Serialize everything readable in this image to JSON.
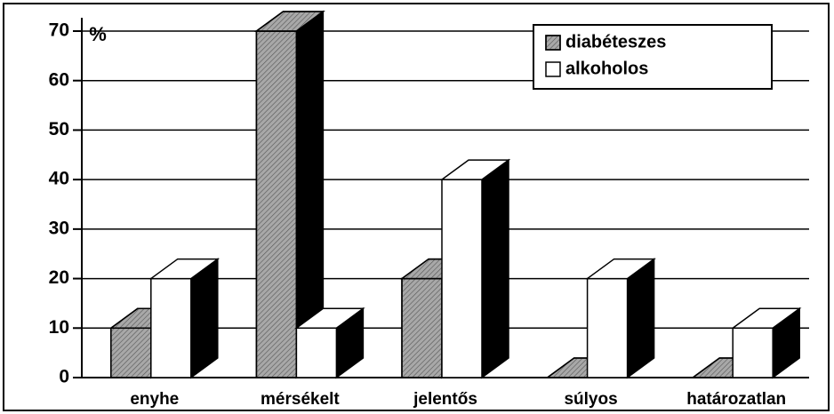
{
  "chart_data": {
    "type": "bar3d",
    "y_label": "%",
    "categories": [
      "enyhe",
      "mérsékelt",
      "jelentős",
      "súlyos",
      "határozatlan"
    ],
    "series": [
      {
        "name": "diabéteszes",
        "color": "#a8a8a8",
        "hatch": true,
        "values": [
          10,
          70,
          20,
          0,
          0
        ]
      },
      {
        "name": "alkoholos",
        "color": "#ffffff",
        "hatch": false,
        "values": [
          20,
          10,
          40,
          20,
          10
        ]
      }
    ],
    "ylim": [
      0,
      70
    ],
    "yticks": [
      0,
      10,
      20,
      30,
      40,
      50,
      60,
      70
    ],
    "grid": true,
    "legend": "top-right"
  }
}
